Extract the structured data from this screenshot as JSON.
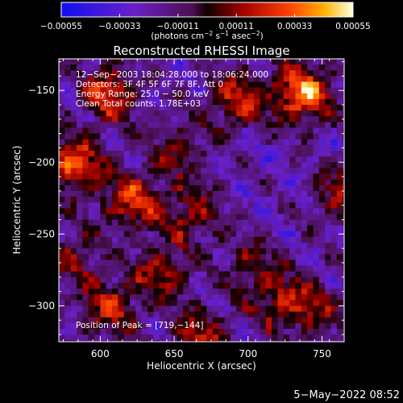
{
  "chart_data": {
    "type": "heatmap",
    "title": "Reconstructed RHESSI Image",
    "xlabel": "Heliocentric X (arcsec)",
    "ylabel": "Heliocentric Y (arcsec)",
    "xlim": [
      572,
      765
    ],
    "ylim": [
      -325,
      -128
    ],
    "x_ticks": [
      600,
      650,
      700,
      750
    ],
    "x_tick_labels": [
      "600",
      "650",
      "700",
      "750"
    ],
    "y_ticks": [
      -150,
      -200,
      -250,
      -300
    ],
    "y_tick_labels": [
      "−150",
      "−200",
      "−250",
      "−300"
    ],
    "colorbar": {
      "range": [
        -0.00055,
        0.00055
      ],
      "ticks": [
        -0.00055,
        -0.00033,
        -0.00011,
        0.00011,
        0.00033,
        0.00055
      ],
      "tick_labels": [
        "−0.00055",
        "−0.00033",
        "−0.00011",
        "0.00011",
        "0.00033",
        "0.00055"
      ],
      "units_main": "(photons cm",
      "units_sup1": "−2",
      "units_mid1": " s",
      "units_sup2": "−1",
      "units_mid2": " asec",
      "units_sup3": "−2",
      "units_end": ")"
    },
    "annotations": [
      "12−Sep−2003 18:04:28.000 to 18:06:24.000",
      "Detectors: 3F 4F 5F 6F 7F 8F, Att 0",
      "Energy Range: 25.0 − 50.0 keV",
      "Clean     Total counts: 1.78E+03"
    ],
    "peak_label": "Position of Peak = [719,−144]",
    "peak": [
      719,
      -144
    ],
    "bright_regions": [
      {
        "x": 735,
        "y": -150,
        "amp": 1.0
      },
      {
        "x": 580,
        "y": -200,
        "amp": 0.85
      },
      {
        "x": 605,
        "y": -150,
        "amp": 0.75
      },
      {
        "x": 620,
        "y": -225,
        "amp": 0.7
      },
      {
        "x": 690,
        "y": -155,
        "amp": 0.65
      },
      {
        "x": 660,
        "y": -235,
        "amp": 0.55
      },
      {
        "x": 640,
        "y": -275,
        "amp": 0.55
      },
      {
        "x": 605,
        "y": -300,
        "amp": 0.6
      },
      {
        "x": 720,
        "y": -295,
        "amp": 0.55
      },
      {
        "x": 760,
        "y": -220,
        "amp": 0.5
      },
      {
        "x": 650,
        "y": -190,
        "amp": 0.45
      },
      {
        "x": 580,
        "y": -265,
        "amp": 0.45
      },
      {
        "x": 700,
        "y": -270,
        "amp": 0.4
      },
      {
        "x": 745,
        "y": -300,
        "amp": 0.4
      },
      {
        "x": 665,
        "y": -320,
        "amp": 0.55
      }
    ]
  },
  "footer": {
    "date": "5−May−2022 08:52"
  }
}
